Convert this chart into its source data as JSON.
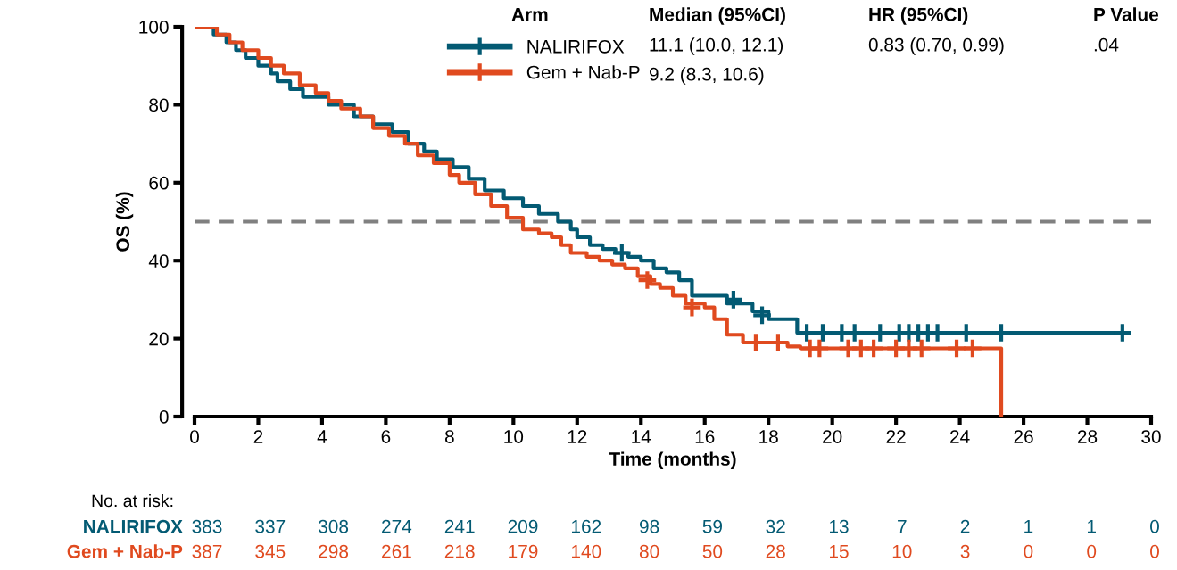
{
  "chart_data": {
    "type": "step",
    "ylabel": "OS (%)",
    "xlabel": "Time (months)",
    "xlim": [
      0,
      30
    ],
    "xticks": [
      0,
      2,
      4,
      6,
      8,
      10,
      12,
      14,
      16,
      18,
      20,
      22,
      24,
      26,
      28,
      30
    ],
    "ylim": [
      0,
      100
    ],
    "yticks": [
      0,
      20,
      40,
      60,
      80,
      100
    ],
    "grid": false,
    "legend": "top",
    "series": [
      {
        "name": "NALIRIFOX",
        "color": "#035a73",
        "x": [
          0,
          0.6,
          1,
          1.3,
          1.6,
          2,
          2.4,
          2.6,
          3,
          3.4,
          4.2,
          5,
          5.6,
          6.2,
          6.7,
          7.2,
          7.6,
          8.1,
          8.6,
          9.1,
          9.7,
          10.3,
          10.8,
          11.4,
          11.8,
          12,
          12.4,
          12.8,
          13.2,
          13.6,
          14,
          14.4,
          14.8,
          15.2,
          15.6,
          16.7,
          17.5,
          18,
          18.9,
          29.1
        ],
        "values": [
          100,
          98,
          96,
          94,
          92,
          90,
          88,
          86,
          84,
          82,
          80,
          77,
          75,
          73,
          70,
          68,
          66,
          64,
          61,
          58,
          56,
          54,
          52,
          50,
          48,
          46,
          44,
          43,
          42,
          41,
          40,
          38,
          37,
          35,
          31,
          29,
          27,
          25,
          21.5,
          21.5
        ]
      },
      {
        "name": "Gem + Nab-P",
        "color": "#e04a1f",
        "x": [
          0,
          0.7,
          1.1,
          1.5,
          2,
          2.4,
          2.8,
          3.3,
          3.8,
          4.2,
          4.6,
          5.2,
          5.6,
          6.1,
          6.6,
          7,
          7.5,
          8,
          8.3,
          8.8,
          9.3,
          9.8,
          10.3,
          10.8,
          11.2,
          11.5,
          11.8,
          12.3,
          12.7,
          13.1,
          13.5,
          13.9,
          14.3,
          14.6,
          15,
          15.4,
          16,
          16.3,
          16.7,
          17.2,
          18.6,
          19,
          25.3,
          25.3
        ],
        "values": [
          100,
          98,
          96,
          94,
          92,
          90,
          88,
          85,
          83,
          81,
          79,
          77,
          74,
          72,
          70,
          67,
          65,
          62,
          60,
          57,
          54,
          51,
          48,
          47,
          46,
          44,
          42,
          41,
          40,
          39,
          38,
          36,
          34,
          33,
          31,
          29,
          28,
          25,
          21,
          19,
          18,
          17.5,
          17.5,
          0
        ]
      },
      {
        "type": "scatter",
        "marker": "cross",
        "color": "#035a73",
        "x": [
          13.4,
          16.9,
          17.8,
          19.2,
          19.7,
          20.3,
          20.7,
          21.5,
          22.1,
          22.4,
          22.7,
          23.0,
          23.3,
          24.2,
          25.3,
          29.1
        ],
        "values": [
          42,
          30,
          26,
          21.5,
          21.5,
          21.5,
          21.5,
          21.5,
          21.5,
          21.5,
          21.5,
          21.5,
          21.5,
          21.5,
          21.5,
          21.5
        ]
      },
      {
        "type": "scatter",
        "marker": "cross",
        "color": "#e04a1f",
        "x": [
          14.2,
          15.6,
          17.6,
          18.3,
          19.3,
          19.6,
          20.5,
          20.9,
          21.3,
          22.0,
          22.4,
          22.8,
          23.9,
          24.4
        ],
        "values": [
          35,
          28,
          19,
          19,
          17.5,
          17.5,
          17.5,
          17.5,
          17.5,
          17.5,
          17.5,
          17.5,
          17.5,
          17.5
        ]
      }
    ],
    "ref_lines": [
      {
        "axis": "y",
        "value": 50,
        "color": "#808080",
        "line_style": "dashed"
      }
    ],
    "annotations": [
      "Arm",
      "Median (95%CI)",
      "HR (95%CI)",
      "P Value",
      "11.1 (10.0, 12.1)",
      "0.83 (0.70, 0.99)",
      ".04",
      "9.2 (8.3, 10.6)",
      "No. at risk:",
      "383",
      "337",
      "308",
      "274",
      "241",
      "209",
      "162",
      "98",
      "59",
      "32",
      "13",
      "7",
      "2",
      "1",
      "1",
      "0",
      "387",
      "345",
      "298",
      "261",
      "218",
      "179",
      "140",
      "80",
      "50",
      "28",
      "15",
      "10",
      "3",
      "0",
      "0",
      "0"
    ]
  }
}
